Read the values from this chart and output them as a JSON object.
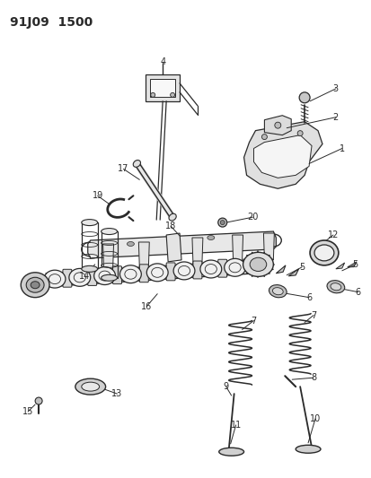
{
  "title": "91J09  1500",
  "bg_color": "#ffffff",
  "lc": "#2a2a2a",
  "title_fontsize": 10,
  "label_fontsize": 7,
  "figsize": [
    4.14,
    5.33
  ],
  "dpi": 100
}
